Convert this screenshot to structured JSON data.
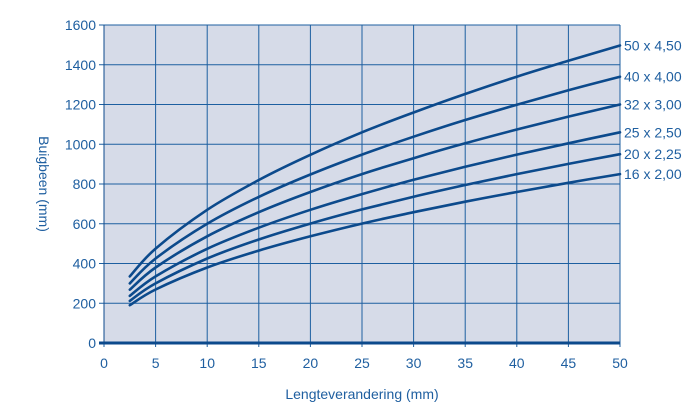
{
  "chart_data": {
    "type": "line",
    "xlabel": "Lengteverandering (mm)",
    "ylabel": "Buigbeen (mm)",
    "xlim": [
      0,
      50
    ],
    "ylim": [
      0,
      1600
    ],
    "xticks": [
      0,
      5,
      10,
      15,
      20,
      25,
      30,
      35,
      40,
      45,
      50
    ],
    "yticks": [
      0,
      200,
      400,
      600,
      800,
      1000,
      1200,
      1400,
      1600
    ],
    "grid": true,
    "legend": "right-end labels",
    "colors": {
      "plot_background": "#d6dbe8",
      "grid": "#1d5fa0",
      "series": "#0c4a8c",
      "text": "#1f5fa0",
      "axis": "#0c4a8c"
    },
    "x": [
      2.5,
      5,
      10,
      15,
      20,
      25,
      30,
      35,
      40,
      45,
      50
    ],
    "series": [
      {
        "name": "50 x 4,50",
        "values": [
          335,
          475,
          670,
          820,
          947,
          1060,
          1160,
          1253,
          1340,
          1420,
          1497
        ]
      },
      {
        "name": "40 x 4,00",
        "values": [
          300,
          425,
          600,
          735,
          848,
          948,
          1038,
          1122,
          1199,
          1272,
          1340
        ]
      },
      {
        "name": "32 x 3,00",
        "values": [
          268,
          380,
          537,
          658,
          760,
          850,
          930,
          1005,
          1074,
          1139,
          1200
        ]
      },
      {
        "name": "25 x 2,50",
        "values": [
          237,
          335,
          474,
          580,
          670,
          749,
          821,
          887,
          948,
          1005,
          1060
        ]
      },
      {
        "name": "20 x 2,25",
        "values": [
          212,
          300,
          425,
          521,
          601,
          672,
          736,
          795,
          850,
          901,
          950
        ]
      },
      {
        "name": "16 x 2,00",
        "values": [
          190,
          269,
          380,
          465,
          537,
          601,
          658,
          711,
          760,
          806,
          850
        ]
      }
    ]
  }
}
